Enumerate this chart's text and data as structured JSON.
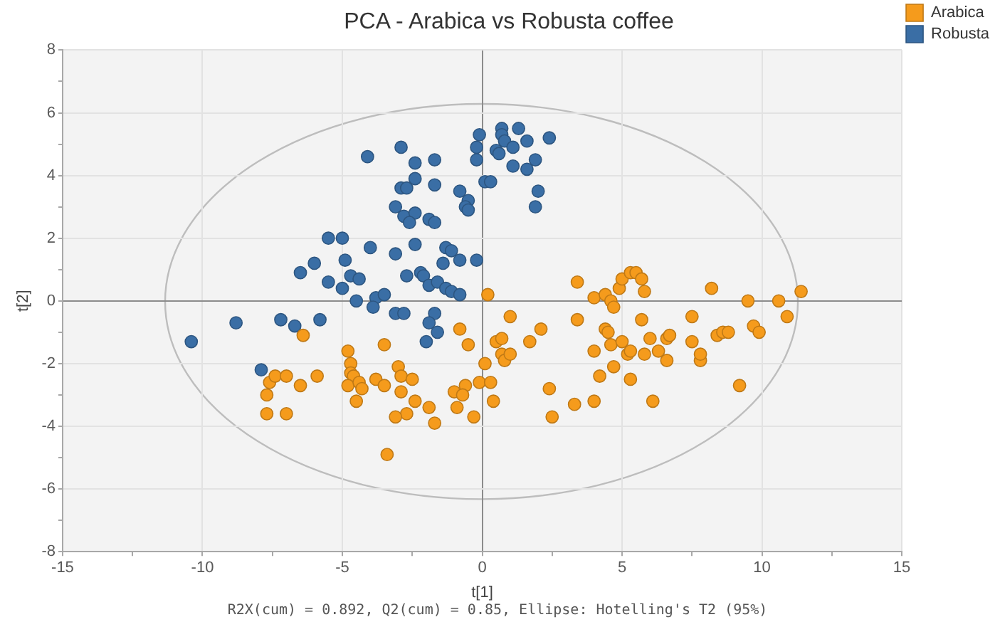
{
  "chart_data": {
    "type": "scatter",
    "title": "PCA - Arabica vs Robusta coffee",
    "xlabel": "t[1]",
    "ylabel": "t[2]",
    "annotations": [
      "R2X(cum) = 0.892, Q2(cum) = 0.85, Ellipse: Hotelling's T2 (95%)"
    ],
    "xlim": [
      -15,
      15
    ],
    "xticks": [
      -15,
      {
        "value": -12.5,
        "label": null
      },
      -10,
      {
        "value": -7.5,
        "label": null
      },
      -5,
      {
        "value": -2.5,
        "label": null
      },
      0,
      {
        "value": 2.5,
        "label": null
      },
      5,
      {
        "value": 7.5,
        "label": null
      },
      10,
      {
        "value": 12.5,
        "label": null
      },
      15
    ],
    "ylim": [
      -8,
      8
    ],
    "yticks": [
      -8,
      {
        "value": -7,
        "label": null
      },
      -6,
      {
        "value": -5,
        "label": null
      },
      -4,
      {
        "value": -3,
        "label": null
      },
      -2,
      {
        "value": -1,
        "label": null
      },
      0,
      {
        "value": 1,
        "label": null
      },
      2,
      {
        "value": 3,
        "label": null
      },
      4,
      {
        "value": 5,
        "label": null
      },
      6,
      {
        "value": 7,
        "label": null
      },
      8
    ],
    "grid": true,
    "legend": "top right",
    "marker": "circle",
    "series": [
      {
        "name": "Arabica",
        "type": "scatter",
        "color": "#f59b1c",
        "x": [
          -6.4,
          -4.8,
          -3.5,
          0.2,
          1.0,
          -0.8,
          2.1,
          -4.7,
          -4.7,
          -4.6,
          -4.8,
          -4.4,
          -4.3,
          -4.5,
          -3.8,
          -3.5,
          -3.0,
          -2.9,
          -2.5,
          -2.9,
          -2.4,
          -1.9,
          -2.7,
          -3.1,
          -1.7,
          -0.9,
          -1.0,
          -0.6,
          -0.7,
          -0.1,
          0.1,
          -0.5,
          -0.3,
          -3.4,
          -7.7,
          -7.7,
          -7.0,
          -7.6,
          -7.4,
          -7.0,
          -6.5,
          -5.9,
          0.5,
          0.7,
          0.7,
          0.8,
          1.0,
          0.3,
          0.4,
          1.7,
          2.4,
          2.5,
          3.3,
          3.4,
          3.4,
          4.0,
          4.4,
          4.6,
          4.7,
          4.9,
          5.0,
          5.3,
          5.5,
          5.7,
          5.8,
          4.4,
          4.5,
          4.6,
          5.0,
          5.2,
          5.3,
          5.7,
          6.0,
          5.8,
          6.3,
          6.6,
          6.7,
          6.6,
          7.5,
          7.5,
          7.8,
          7.8,
          4.0,
          4.2,
          4.7,
          5.3,
          4.0,
          6.1,
          8.2,
          9.5,
          10.6,
          11.4,
          10.9,
          8.4,
          8.6,
          8.8,
          9.7,
          9.9,
          9.2
        ],
        "values": [
          -1.1,
          -1.6,
          -1.4,
          0.2,
          -0.5,
          -0.9,
          -0.9,
          -2.0,
          -2.3,
          -2.4,
          -2.7,
          -2.6,
          -2.8,
          -3.2,
          -2.5,
          -2.7,
          -2.1,
          -2.4,
          -2.5,
          -2.9,
          -3.2,
          -3.4,
          -3.6,
          -3.7,
          -3.9,
          -3.4,
          -2.9,
          -2.7,
          -3.0,
          -2.6,
          -2.0,
          -1.4,
          -3.7,
          -4.9,
          -3.0,
          -3.6,
          -3.6,
          -2.6,
          -2.4,
          -2.4,
          -2.7,
          -2.4,
          -1.3,
          -1.2,
          -1.7,
          -1.9,
          -1.7,
          -2.6,
          -3.2,
          -1.3,
          -2.8,
          -3.7,
          -3.3,
          0.6,
          -0.6,
          0.1,
          0.2,
          0.0,
          -0.2,
          0.4,
          0.7,
          0.9,
          0.9,
          0.7,
          0.3,
          -0.9,
          -1.0,
          -1.4,
          -1.3,
          -1.7,
          -1.6,
          -0.6,
          -1.2,
          -1.7,
          -1.6,
          -1.2,
          -1.1,
          -1.9,
          -0.5,
          -1.3,
          -1.9,
          -1.7,
          -1.6,
          -2.4,
          -2.1,
          -2.5,
          -3.2,
          -3.2,
          0.4,
          0.0,
          0.0,
          0.3,
          -0.5,
          -1.1,
          -1.0,
          -1.0,
          -0.8,
          -1.0,
          -2.7
        ]
      },
      {
        "name": "Robusta",
        "type": "scatter",
        "color": "#3a6ea5",
        "x": [
          -4.1,
          -5.5,
          -5.0,
          -4.0,
          -4.9,
          -6.0,
          -6.5,
          -5.5,
          -5.0,
          -4.7,
          -4.4,
          -4.5,
          -3.8,
          -3.9,
          -3.5,
          -8.8,
          -7.2,
          -6.7,
          -5.8,
          -10.4,
          -2.9,
          -2.4,
          -1.7,
          -0.1,
          -0.2,
          -0.2,
          0.7,
          0.7,
          1.3,
          0.8,
          1.1,
          0.5,
          0.6,
          1.6,
          2.4,
          1.9,
          1.1,
          1.6,
          2.0,
          1.9,
          0.1,
          0.3,
          -2.9,
          -2.7,
          -2.4,
          -1.7,
          -0.8,
          -0.5,
          -0.6,
          -0.5,
          -3.1,
          -2.8,
          -2.4,
          -2.6,
          -1.9,
          -1.7,
          -2.4,
          -3.1,
          -1.3,
          -1.1,
          -1.4,
          -0.8,
          -0.2,
          -2.7,
          -2.2,
          -2.1,
          -1.9,
          -1.6,
          -1.3,
          -1.1,
          -0.8,
          -3.1,
          -2.8,
          -1.7,
          -1.9,
          -1.6,
          -2.0,
          -7.9
        ],
        "values": [
          4.6,
          2.0,
          2.0,
          1.7,
          1.3,
          1.2,
          0.9,
          0.6,
          0.4,
          0.8,
          0.7,
          0.0,
          0.1,
          -0.2,
          0.2,
          -0.7,
          -0.6,
          -0.8,
          -0.6,
          -1.3,
          4.9,
          4.4,
          4.5,
          5.3,
          4.9,
          4.5,
          5.5,
          5.3,
          5.5,
          5.1,
          4.9,
          4.8,
          4.7,
          5.1,
          5.2,
          4.5,
          4.3,
          4.2,
          3.5,
          3.0,
          3.8,
          3.8,
          3.6,
          3.6,
          3.9,
          3.7,
          3.5,
          3.2,
          3.0,
          2.9,
          3.0,
          2.7,
          2.8,
          2.5,
          2.6,
          2.5,
          1.8,
          1.5,
          1.7,
          1.6,
          1.2,
          1.3,
          1.3,
          0.8,
          0.9,
          0.8,
          0.5,
          0.6,
          0.4,
          0.3,
          0.2,
          -0.4,
          -0.4,
          -0.4,
          -0.7,
          -1.0,
          -1.3,
          -2.2
        ]
      }
    ]
  }
}
